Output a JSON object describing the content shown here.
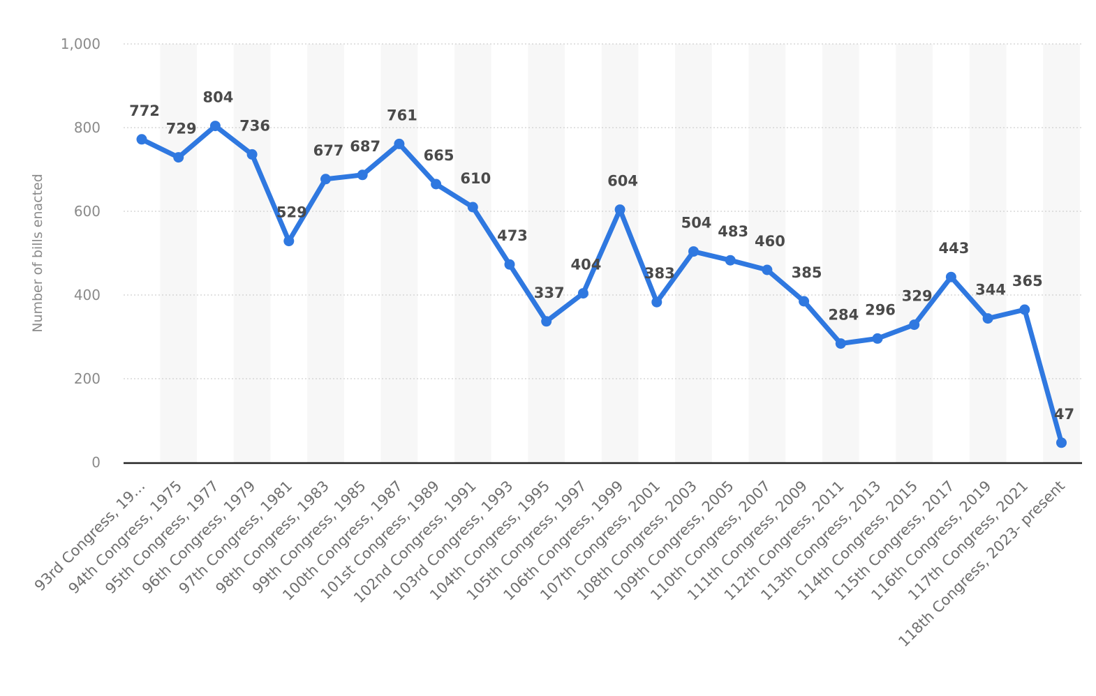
{
  "chart_data": {
    "type": "line",
    "ylabel": "Number of bills enacted",
    "ylim": [
      0,
      1000
    ],
    "yticks": [
      0,
      200,
      400,
      600,
      800,
      1000
    ],
    "ytick_labels": [
      "0",
      "200",
      "400",
      "600",
      "800",
      "1,000"
    ],
    "grid": true,
    "categories": [
      "93rd Congress, 19…",
      "94th Congress, 1975",
      "95th Congress, 1977",
      "96th Congress, 1979",
      "97th Congress, 1981",
      "98th Congress, 1983",
      "99th Congress, 1985",
      "100th Congress, 1987",
      "101st Congress, 1989",
      "102nd Congress, 1991",
      "103rd Congress, 1993",
      "104th Congress, 1995",
      "105th Congress, 1997",
      "106th Congress, 1999",
      "107th Congress, 2001",
      "108th Congress, 2003",
      "109th Congress, 2005",
      "110th Congress, 2007",
      "111th Congress, 2009",
      "112th Congress, 2011",
      "113th Congress, 2013",
      "114th Congress, 2015",
      "115th Congress, 2017",
      "116th Congress, 2019",
      "117th Congress, 2021",
      "118th Congress, 2023- present"
    ],
    "series": [
      {
        "values": [
          772,
          729,
          804,
          736,
          529,
          677,
          687,
          761,
          665,
          610,
          473,
          337,
          404,
          604,
          383,
          504,
          483,
          460,
          385,
          284,
          296,
          329,
          443,
          344,
          365,
          47
        ],
        "color": "#2f78e0"
      }
    ]
  }
}
